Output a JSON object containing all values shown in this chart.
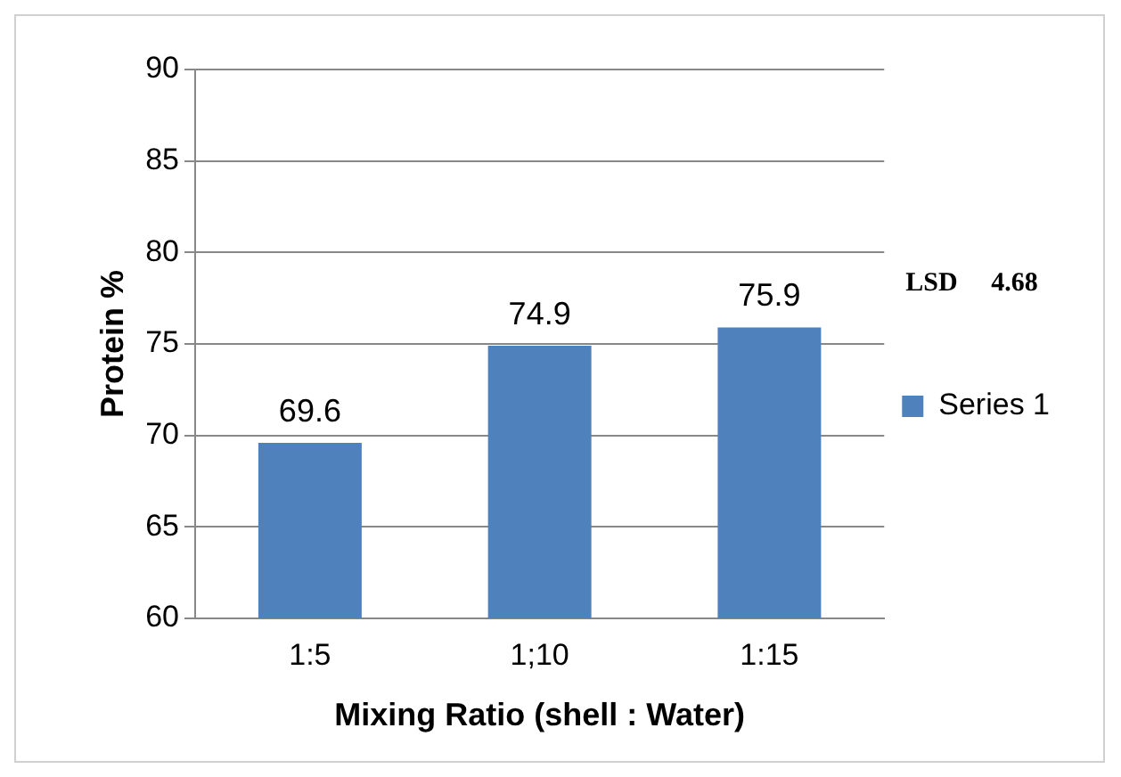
{
  "chart_data": {
    "type": "bar",
    "xlabel": "Mixing Ratio (shell : Water)",
    "ylabel": "Protein %",
    "categories": [
      "1:5",
      "1;10",
      "1:15"
    ],
    "series": [
      {
        "name": "Series 1",
        "color": "#4f81bd",
        "values": [
          69.6,
          74.9,
          75.9
        ]
      }
    ],
    "ylim": [
      60,
      90
    ],
    "yticks": [
      60,
      65,
      70,
      75,
      80,
      85,
      90
    ],
    "grid": "y",
    "legend": "right",
    "data_labels": true,
    "annotations": [
      "LSD    4.68"
    ]
  }
}
